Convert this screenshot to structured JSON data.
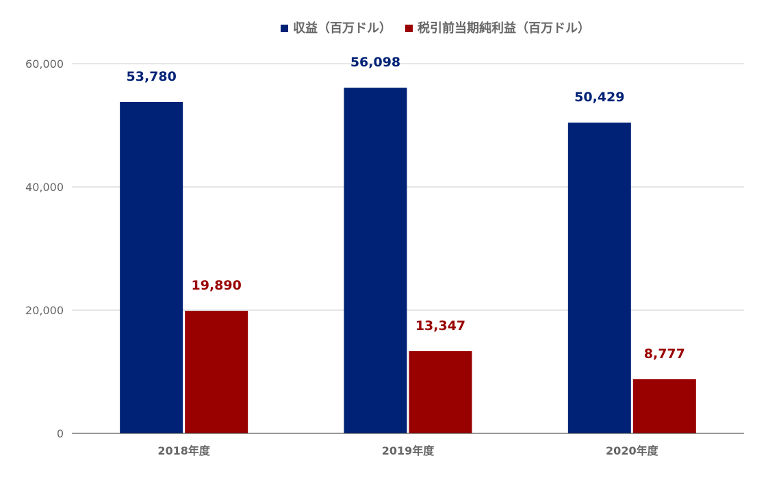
{
  "chart_data": {
    "type": "bar",
    "categories": [
      "2018年度",
      "2019年度",
      "2020年度"
    ],
    "series": [
      {
        "name": "収益（百万ドル）",
        "values": [
          53780,
          56098,
          50429
        ],
        "labels": [
          "53,780",
          "56,098",
          "50,429"
        ],
        "color": "#002276"
      },
      {
        "name": "税引前当期純利益（百万ドル）",
        "values": [
          19890,
          13347,
          8777
        ],
        "labels": [
          "19,890",
          "13,347",
          "8,777"
        ],
        "color": "#990000"
      }
    ],
    "ylim": [
      0,
      60000
    ],
    "yticks": [
      0,
      20000,
      40000,
      60000
    ],
    "ytick_labels": [
      "0",
      "20,000",
      "40,000",
      "60,000"
    ],
    "grid": true,
    "legend_position": "top-center",
    "title": "",
    "xlabel": "",
    "ylabel": ""
  }
}
